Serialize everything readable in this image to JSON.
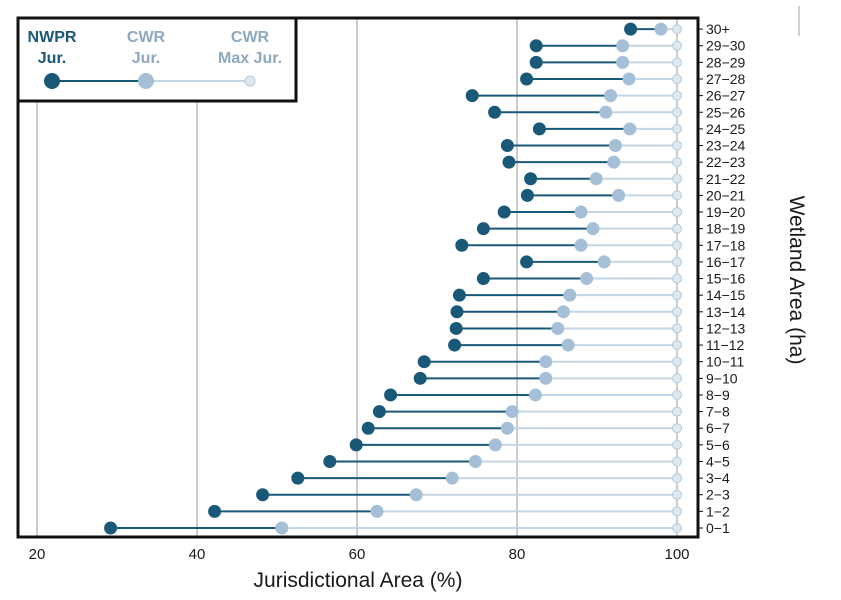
{
  "chart_data": {
    "type": "dumbbell",
    "xlabel": "Jurisdictional Area (%)",
    "ylabel": "Wetland Area (ha)",
    "xlim": [
      18,
      102
    ],
    "xticks": [
      "20",
      "40",
      "60",
      "80",
      "100"
    ],
    "grid": true,
    "legend_position": "top-left",
    "legend": [
      {
        "line1": "NWPR",
        "line2": "Jur."
      },
      {
        "line1": "CWR",
        "line2": "Jur."
      },
      {
        "line1": "CWR",
        "line2": "Max Jur."
      }
    ],
    "colors": {
      "nwpr": "#1a5878",
      "cwr": "#a5bfd6",
      "cwrmax": "#c3d6e6",
      "axis": "#111111",
      "grid": "#9a9a9a"
    },
    "categories": [
      "0−1",
      "1−2",
      "2−3",
      "3−4",
      "4−5",
      "5−6",
      "6−7",
      "7−8",
      "8−9",
      "9−10",
      "10−11",
      "11−12",
      "12−13",
      "13−14",
      "14−15",
      "15−16",
      "16−17",
      "17−18",
      "18−19",
      "19−20",
      "20−21",
      "21−22",
      "22−23",
      "23−24",
      "24−25",
      "25−26",
      "26−27",
      "27−28",
      "28−29",
      "29−30",
      "30+"
    ],
    "series": [
      {
        "name": "NWPR Jur.",
        "values": [
          29.2,
          42.2,
          48.2,
          52.6,
          56.6,
          59.9,
          61.4,
          62.8,
          64.2,
          67.9,
          68.4,
          72.2,
          72.4,
          72.5,
          72.8,
          75.8,
          81.2,
          73.1,
          75.8,
          78.4,
          81.3,
          81.7,
          79.0,
          78.8,
          82.8,
          77.2,
          74.4,
          81.2,
          82.4,
          82.4,
          94.2
        ]
      },
      {
        "name": "CWR Jur.",
        "values": [
          50.6,
          62.5,
          67.4,
          71.9,
          74.8,
          77.3,
          78.8,
          79.4,
          82.3,
          83.6,
          83.6,
          86.4,
          85.1,
          85.8,
          86.6,
          88.7,
          90.9,
          88.0,
          89.5,
          88.0,
          92.7,
          89.9,
          92.1,
          92.3,
          94.1,
          91.1,
          91.7,
          94.0,
          93.2,
          93.2,
          98.0
        ]
      },
      {
        "name": "CWR Max Jur.",
        "values": [
          100,
          100,
          100,
          100,
          100,
          100,
          100,
          100,
          100,
          100,
          100,
          100,
          100,
          100,
          100,
          100,
          100,
          100,
          100,
          100,
          100,
          100,
          100,
          100,
          100,
          100,
          100,
          100,
          100,
          100,
          100
        ]
      }
    ]
  }
}
